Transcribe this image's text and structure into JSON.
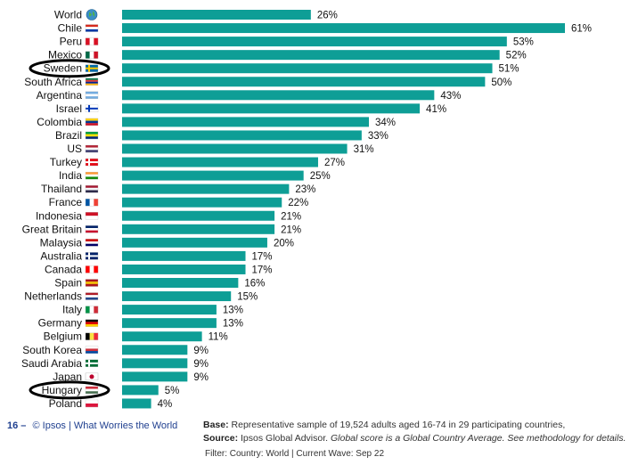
{
  "chart_data": {
    "type": "bar",
    "orientation": "horizontal",
    "categories": [
      "World",
      "Chile",
      "Peru",
      "Mexico",
      "Sweden",
      "South Africa",
      "Argentina",
      "Israel",
      "Colombia",
      "Brazil",
      "US",
      "Turkey",
      "India",
      "Thailand",
      "France",
      "Indonesia",
      "Great Britain",
      "Malaysia",
      "Australia",
      "Canada",
      "Spain",
      "Netherlands",
      "Italy",
      "Germany",
      "Belgium",
      "South Korea",
      "Saudi Arabia",
      "Japan",
      "Hungary",
      "Poland"
    ],
    "values": [
      26,
      61,
      53,
      52,
      51,
      50,
      43,
      41,
      34,
      33,
      31,
      27,
      25,
      23,
      22,
      21,
      21,
      20,
      17,
      17,
      16,
      15,
      13,
      13,
      11,
      9,
      9,
      9,
      5,
      4
    ],
    "value_labels": [
      "26%",
      "61%",
      "53%",
      "52%",
      "51%",
      "50%",
      "43%",
      "41%",
      "34%",
      "33%",
      "31%",
      "27%",
      "25%",
      "23%",
      "22%",
      "21%",
      "21%",
      "20%",
      "17%",
      "17%",
      "16%",
      "15%",
      "13%",
      "13%",
      "11%",
      "9%",
      "9%",
      "9%",
      "5%",
      "4%"
    ],
    "highlighted": [
      "Sweden",
      "Hungary"
    ],
    "bar_color": "#0e9e96",
    "highlight_color": "#000000",
    "xlim": [
      0,
      61
    ]
  },
  "flags": {
    "World": "globe-icon",
    "Chile": [
      "#d52b1e",
      "#ffffff",
      "#0039a6"
    ],
    "Peru": [
      "#d91023",
      "#ffffff",
      "#d91023"
    ],
    "Mexico": [
      "#006847",
      "#ffffff",
      "#ce1126"
    ],
    "Sweden": [
      "#006aa7",
      "#fecc00"
    ],
    "South Africa": [
      "#007a4d",
      "#de3831",
      "#002395",
      "#ffb612"
    ],
    "Argentina": [
      "#74acdf",
      "#ffffff",
      "#74acdf"
    ],
    "Israel": [
      "#ffffff",
      "#0038b8"
    ],
    "Colombia": [
      "#fcd116",
      "#003893",
      "#ce1126"
    ],
    "Brazil": [
      "#009c3b",
      "#ffdf00",
      "#002776"
    ],
    "US": [
      "#b22234",
      "#ffffff",
      "#3c3b6e"
    ],
    "Turkey": [
      "#e30a17",
      "#ffffff"
    ],
    "India": [
      "#ff9933",
      "#ffffff",
      "#138808"
    ],
    "Thailand": [
      "#a51931",
      "#f4f5f8",
      "#2d2a4a"
    ],
    "France": [
      "#0055a4",
      "#ffffff",
      "#ef4135"
    ],
    "Indonesia": [
      "#ce1126",
      "#ffffff"
    ],
    "Great Britain": [
      "#012169",
      "#ffffff",
      "#c8102e"
    ],
    "Malaysia": [
      "#cc0001",
      "#ffffff",
      "#010066"
    ],
    "Australia": [
      "#012169",
      "#ffffff"
    ],
    "Canada": [
      "#ff0000",
      "#ffffff",
      "#ff0000"
    ],
    "Spain": [
      "#aa151b",
      "#f1bf00",
      "#aa151b"
    ],
    "Netherlands": [
      "#ae1c28",
      "#ffffff",
      "#21468b"
    ],
    "Italy": [
      "#009246",
      "#ffffff",
      "#ce2b37"
    ],
    "Germany": [
      "#000000",
      "#dd0000",
      "#ffce00"
    ],
    "Belgium": [
      "#000000",
      "#fae042",
      "#ed2939"
    ],
    "South Korea": [
      "#ffffff",
      "#cd2e3a",
      "#0047a0"
    ],
    "Saudi Arabia": [
      "#006c35",
      "#ffffff"
    ],
    "Japan": [
      "#ffffff",
      "#bc002d"
    ],
    "Hungary": [
      "#ce2939",
      "#ffffff",
      "#477050"
    ],
    "Poland": [
      "#ffffff",
      "#dc143c"
    ]
  },
  "footer": {
    "page_number": "16 –",
    "brand": "© Ipsos | What Worries the World",
    "base_label": "Base:",
    "base_text": "Representative sample of 19,524 adults aged 16-74 in 29 participating countries,",
    "source_label": "Source:",
    "source_text": "Ipsos Global Advisor.",
    "source_note": "Global score is a Global Country Average. See methodology for details.",
    "filter": "Filter: Country: World | Current Wave: Sep 22"
  }
}
